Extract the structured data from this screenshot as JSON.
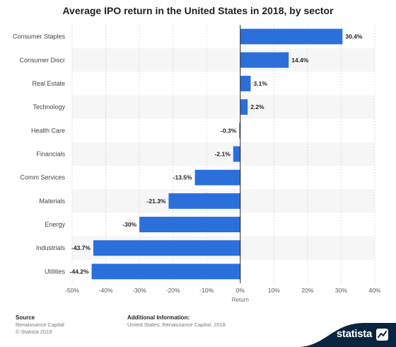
{
  "chart_data": {
    "type": "bar",
    "orientation": "horizontal",
    "title": "Average IPO return in the United States in 2018, by sector",
    "xlabel": "Return",
    "ylabel": "",
    "xlim": [
      -50,
      40
    ],
    "ticks": [
      -50,
      -40,
      -30,
      -20,
      -10,
      0,
      10,
      20,
      30,
      40
    ],
    "tick_labels": [
      "-50%",
      "-40%",
      "-30%",
      "-20%",
      "-10%",
      "0%",
      "10%",
      "20%",
      "30%",
      "40%"
    ],
    "grid": true,
    "categories": [
      "Consumer Staples",
      "Consumer Discr",
      "Real Estate",
      "Technology",
      "Health Care",
      "Financials",
      "Comm Services",
      "Materials",
      "Energy",
      "Industrials",
      "Utilities"
    ],
    "values": [
      30.4,
      14.4,
      3.1,
      2.2,
      -0.3,
      -2.1,
      -13.5,
      -21.3,
      -30,
      -43.7,
      -44.2
    ],
    "value_labels": [
      "30.4%",
      "14.4%",
      "3.1%",
      "2.2%",
      "-0.3%",
      "-2.1%",
      "-13.5%",
      "-21.3%",
      "-30%",
      "-43.7%",
      "-44.2%"
    ],
    "bar_color": "#2b6fdb"
  },
  "footer": {
    "source_heading": "Source",
    "source_lines": [
      "Renaissance Capital",
      "© Statista 2019"
    ],
    "info_heading": "Additional Information:",
    "info_text": "United States; Renaissance Capital; 2018",
    "brand": "statista",
    "brand_color": "#0a2540"
  }
}
